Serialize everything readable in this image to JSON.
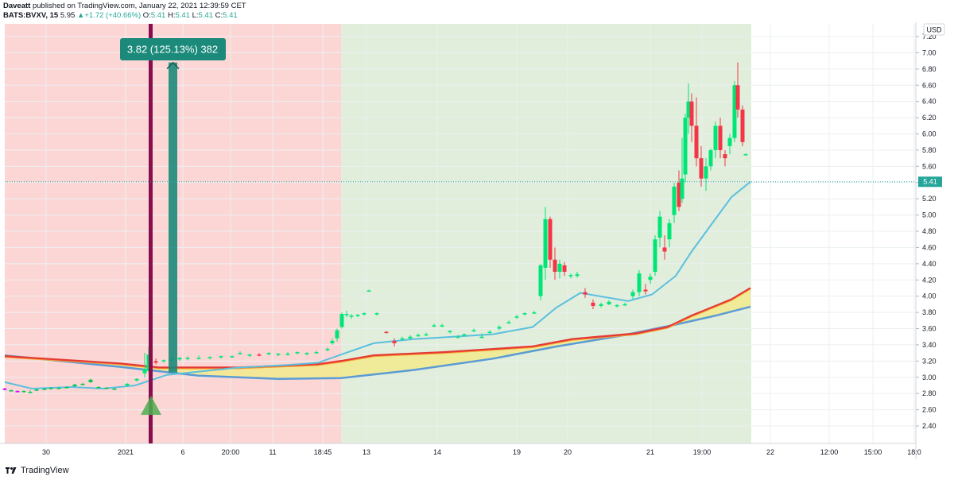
{
  "header": {
    "author": "Daveatt",
    "published": "published on TradingView.com, January 22, 2021 12:39:59 CET",
    "symbol": "BATS:BVXV, 15",
    "last": "5.95",
    "change": "+1.72 (+40.66%)",
    "change_arrow": "▲",
    "o_label": "O:",
    "o": "5.41",
    "h_label": "H:",
    "h": "5.41",
    "l_label": "L:",
    "l": "5.41",
    "c_label": "C:",
    "c": "5.41"
  },
  "currency": "USD",
  "price_badge": "5.41",
  "measure_label": "3.82 (125.13%) 382",
  "y_ticks": [
    "7.20",
    "7.00",
    "6.80",
    "6.60",
    "6.40",
    "6.20",
    "6.00",
    "5.80",
    "5.60",
    "5.40",
    "5.20",
    "5.00",
    "4.80",
    "4.60",
    "4.40",
    "4.20",
    "4.00",
    "3.80",
    "3.60",
    "3.40",
    "3.20",
    "3.00",
    "2.80",
    "2.60",
    "2.40"
  ],
  "x_ticks": [
    "30",
    "2021",
    "6",
    "20:00",
    "11",
    "18:45",
    "13",
    "14",
    "19",
    "20",
    "21",
    "19:00",
    "22",
    "12:00",
    "15:00",
    "18:0"
  ],
  "footer": {
    "brand": "TradingView"
  },
  "colors": {
    "up": "#26a69a",
    "candle_up": "#00e676",
    "candle_down": "#f23645",
    "bg_red": "#fcd6d4",
    "bg_green": "#e0eedb",
    "fast_ma": "#5bc0de",
    "band_fill": "#f2ea8c",
    "band_top": "#e53935",
    "band_bottom": "#5b9bd5",
    "signal_bar": "#880e4f",
    "measure": "#1b8a7a"
  },
  "chart_data": {
    "type": "candlestick",
    "series": [
      {
        "name": "",
        "values_x": [
          "30",
          "2021",
          "6",
          "11",
          "13",
          "14",
          "19",
          "20",
          "21",
          "22"
        ]
      }
    ],
    "ylim": [
      2.4,
      7.2
    ],
    "last_price": 5.41,
    "measure": {
      "from": 3.06,
      "to": 6.88,
      "change": 3.82,
      "percent": 125.13,
      "bars": 382
    }
  }
}
